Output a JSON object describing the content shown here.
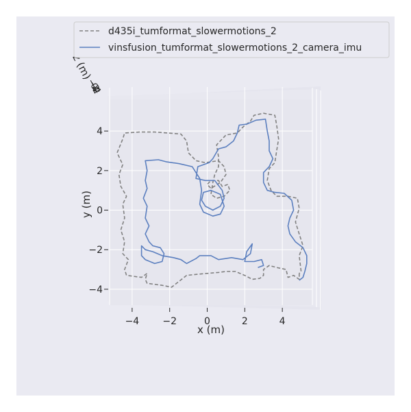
{
  "chart_data": {
    "type": "line",
    "projection": "3d-top-down",
    "xlabel": "x (m)",
    "ylabel": "y (m)",
    "zlabel": "z (m)",
    "xlim": [
      -5.2,
      5.6
    ],
    "ylim": [
      -4.8,
      5.6
    ],
    "xticks": [
      -4,
      -2,
      0,
      2,
      4
    ],
    "yticks": [
      -4,
      -2,
      0,
      2,
      4
    ],
    "xtick_labels": [
      "−4",
      "−2",
      "0",
      "2",
      "4"
    ],
    "ytick_labels": [
      "−4",
      "−2",
      "0",
      "2",
      "4"
    ],
    "ztick_labels": [
      "−4",
      "−2",
      "0",
      "2",
      "4"
    ],
    "legend": {
      "position": "top-right"
    },
    "series": [
      {
        "name": "d435i_tumformat_slowermotions_2",
        "style": "dashed",
        "color": "#808080",
        "points": [
          [
            4.9,
            -3.2
          ],
          [
            4.9,
            -3.5
          ],
          [
            4.6,
            -3.3
          ],
          [
            4.3,
            -3.4
          ],
          [
            4.2,
            -3.0
          ],
          [
            3.7,
            -2.9
          ],
          [
            3.3,
            -2.8
          ],
          [
            3.0,
            -3.0
          ],
          [
            3.0,
            -3.3
          ],
          [
            2.8,
            -3.45
          ],
          [
            2.4,
            -3.5
          ],
          [
            2.0,
            -3.3
          ],
          [
            1.5,
            -3.1
          ],
          [
            1.0,
            -3.1
          ],
          [
            0.6,
            -3.15
          ],
          [
            0.0,
            -3.2
          ],
          [
            -0.6,
            -3.25
          ],
          [
            -1.1,
            -3.3
          ],
          [
            -1.5,
            -3.6
          ],
          [
            -1.9,
            -3.9
          ],
          [
            -2.4,
            -3.8
          ],
          [
            -3.2,
            -3.7
          ],
          [
            -3.3,
            -3.5
          ],
          [
            -3.2,
            -3.2
          ],
          [
            -3.5,
            -3.4
          ],
          [
            -4.3,
            -3.3
          ],
          [
            -4.4,
            -3.0
          ],
          [
            -4.2,
            -2.5
          ],
          [
            -4.5,
            -2.2
          ],
          [
            -4.4,
            -1.6
          ],
          [
            -4.6,
            -1.0
          ],
          [
            -4.4,
            -0.4
          ],
          [
            -4.5,
            0.3
          ],
          [
            -4.3,
            0.7
          ],
          [
            -4.6,
            1.2
          ],
          [
            -4.7,
            1.8
          ],
          [
            -4.5,
            2.3
          ],
          [
            -4.8,
            2.9
          ],
          [
            -4.5,
            3.6
          ],
          [
            -4.4,
            3.9
          ],
          [
            -3.6,
            3.95
          ],
          [
            -2.8,
            3.95
          ],
          [
            -2.1,
            3.9
          ],
          [
            -1.4,
            3.85
          ],
          [
            -1.1,
            3.5
          ],
          [
            -1.0,
            2.9
          ],
          [
            -0.6,
            2.5
          ],
          [
            -0.1,
            2.4
          ],
          [
            0.6,
            2.5
          ],
          [
            0.9,
            2.2
          ],
          [
            1.0,
            1.8
          ],
          [
            0.7,
            1.4
          ],
          [
            0.2,
            1.1
          ],
          [
            0.0,
            1.3
          ],
          [
            0.2,
            1.5
          ],
          [
            0.6,
            1.5
          ],
          [
            0.8,
            1.2
          ],
          [
            1.1,
            1.3
          ],
          [
            1.2,
            1.0
          ],
          [
            0.9,
            0.7
          ],
          [
            0.5,
            0.6
          ],
          [
            0.2,
            0.8
          ],
          [
            0.3,
            1.4
          ],
          [
            0.4,
            1.8
          ],
          [
            0.6,
            2.2
          ],
          [
            0.6,
            2.7
          ],
          [
            0.5,
            3.3
          ],
          [
            1.0,
            3.8
          ],
          [
            1.6,
            3.9
          ],
          [
            1.9,
            4.2
          ],
          [
            2.3,
            4.5
          ],
          [
            2.5,
            4.8
          ],
          [
            3.0,
            4.9
          ],
          [
            3.6,
            4.8
          ],
          [
            3.7,
            4.3
          ],
          [
            3.8,
            3.6
          ],
          [
            3.7,
            3.0
          ],
          [
            3.6,
            2.4
          ],
          [
            3.3,
            2.1
          ],
          [
            3.2,
            1.5
          ],
          [
            3.4,
            1.0
          ],
          [
            3.7,
            0.7
          ],
          [
            4.3,
            0.7
          ],
          [
            4.8,
            0.6
          ],
          [
            4.9,
            0.1
          ],
          [
            4.7,
            -0.6
          ],
          [
            4.9,
            -1.2
          ],
          [
            5.1,
            -1.8
          ],
          [
            4.9,
            -2.3
          ],
          [
            5.0,
            -3.1
          ],
          [
            4.9,
            -3.2
          ]
        ]
      },
      {
        "name": "vinsfusion_tumformat_slowermotions_2_camera_imu",
        "style": "solid",
        "color": "#5b7fbf",
        "points": [
          [
            4.9,
            -3.55
          ],
          [
            5.1,
            -3.4
          ],
          [
            5.2,
            -3.1
          ],
          [
            5.3,
            -2.7
          ],
          [
            5.3,
            -2.3
          ],
          [
            5.1,
            -1.9
          ],
          [
            4.7,
            -1.6
          ],
          [
            4.4,
            -1.2
          ],
          [
            4.3,
            -0.8
          ],
          [
            4.4,
            -0.4
          ],
          [
            4.6,
            0.0
          ],
          [
            4.5,
            0.5
          ],
          [
            4.1,
            0.85
          ],
          [
            3.6,
            0.9
          ],
          [
            3.2,
            1.0
          ],
          [
            3.0,
            1.4
          ],
          [
            3.0,
            1.9
          ],
          [
            3.3,
            2.2
          ],
          [
            3.5,
            2.6
          ],
          [
            3.3,
            3.0
          ],
          [
            3.3,
            3.5
          ],
          [
            3.2,
            4.0
          ],
          [
            3.1,
            4.6
          ],
          [
            2.6,
            4.55
          ],
          [
            2.1,
            4.35
          ],
          [
            1.7,
            4.3
          ],
          [
            1.6,
            3.9
          ],
          [
            1.4,
            3.5
          ],
          [
            1.0,
            3.2
          ],
          [
            0.6,
            3.1
          ],
          [
            0.3,
            2.6
          ],
          [
            0.1,
            2.4
          ],
          [
            -0.2,
            2.3
          ],
          [
            -0.5,
            2.2
          ],
          [
            -0.6,
            1.6
          ],
          [
            -0.1,
            1.5
          ],
          [
            0.4,
            1.5
          ],
          [
            0.8,
            1.0
          ],
          [
            0.9,
            0.6
          ],
          [
            0.7,
            0.2
          ],
          [
            0.3,
            0.0
          ],
          [
            -0.1,
            0.2
          ],
          [
            -0.3,
            0.5
          ],
          [
            -0.2,
            0.9
          ],
          [
            0.2,
            1.0
          ],
          [
            0.7,
            0.8
          ],
          [
            0.9,
            0.2
          ],
          [
            0.7,
            -0.2
          ],
          [
            0.3,
            -0.3
          ],
          [
            -0.2,
            -0.1
          ],
          [
            -0.4,
            0.3
          ],
          [
            -0.3,
            1.0
          ],
          [
            -0.4,
            1.6
          ],
          [
            -0.8,
            2.2
          ],
          [
            -1.5,
            2.35
          ],
          [
            -2.2,
            2.45
          ],
          [
            -2.6,
            2.55
          ],
          [
            -3.3,
            2.5
          ],
          [
            -3.2,
            2.0
          ],
          [
            -3.3,
            1.5
          ],
          [
            -3.2,
            1.1
          ],
          [
            -3.4,
            0.6
          ],
          [
            -3.2,
            0.2
          ],
          [
            -3.3,
            -0.4
          ],
          [
            -3.1,
            -0.8
          ],
          [
            -3.3,
            -1.2
          ],
          [
            -3.1,
            -1.6
          ],
          [
            -2.9,
            -1.8
          ],
          [
            -2.5,
            -1.9
          ],
          [
            -2.3,
            -2.2
          ],
          [
            -2.4,
            -2.6
          ],
          [
            -2.8,
            -2.7
          ],
          [
            -3.3,
            -2.5
          ],
          [
            -3.5,
            -2.3
          ],
          [
            -3.5,
            -1.8
          ],
          [
            -3.3,
            -2.0
          ],
          [
            -2.9,
            -2.1
          ],
          [
            -2.4,
            -2.3
          ],
          [
            -1.8,
            -2.4
          ],
          [
            -1.4,
            -2.5
          ],
          [
            -1.1,
            -2.7
          ],
          [
            -0.6,
            -2.45
          ],
          [
            -0.4,
            -2.3
          ],
          [
            0.2,
            -2.3
          ],
          [
            0.6,
            -2.5
          ],
          [
            1.3,
            -2.4
          ],
          [
            1.9,
            -2.5
          ],
          [
            2.3,
            -2.2
          ],
          [
            2.4,
            -1.7
          ],
          [
            2.1,
            -2.1
          ],
          [
            2.0,
            -2.6
          ],
          [
            2.5,
            -2.6
          ],
          [
            2.9,
            -2.5
          ],
          [
            3.0,
            -2.8
          ],
          [
            2.7,
            -2.9
          ]
        ]
      }
    ]
  }
}
